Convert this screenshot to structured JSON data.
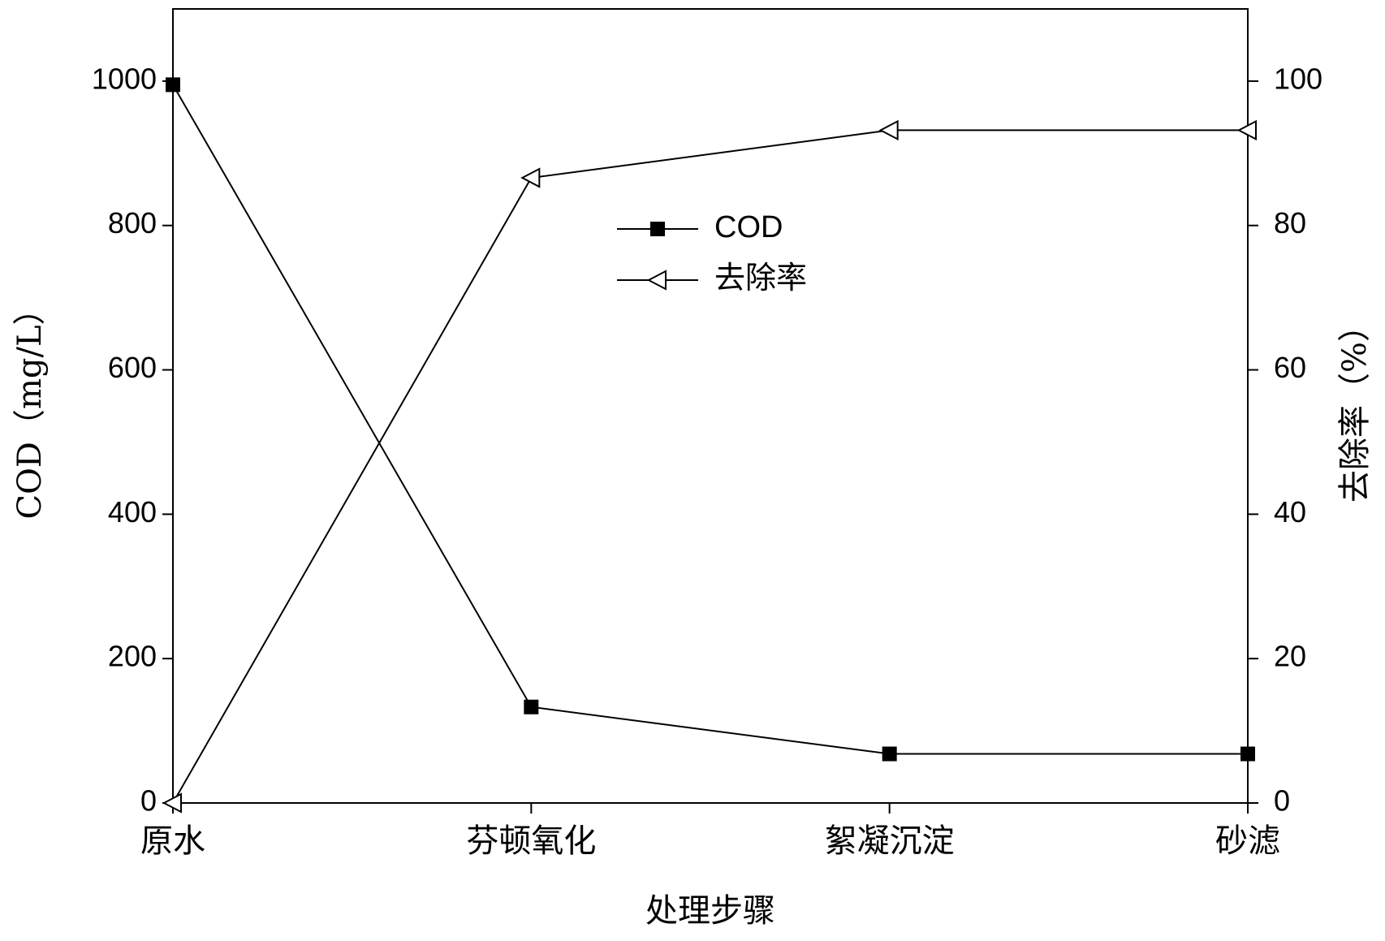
{
  "chart_data": {
    "type": "line",
    "x_label": "处理步骤",
    "y_label": "COD（mg/L）",
    "y2_label": "去除率（%）",
    "categories": [
      "原水",
      "芬顿氧化",
      "絮凝沉淀",
      "砂滤"
    ],
    "series": [
      {
        "name": "COD",
        "color": "#000000",
        "marker": "square",
        "values": [
          995,
          133,
          68,
          68
        ]
      },
      {
        "name": "去除率",
        "color": "#000000",
        "marker": "triangle-left",
        "axis": "y2",
        "values": [
          0,
          86.6,
          93.2,
          93.2
        ]
      }
    ],
    "ylim": [
      0,
      1100
    ],
    "yticks": [
      0,
      200,
      400,
      600,
      800,
      1000
    ],
    "y2lim": [
      0,
      110
    ],
    "y2ticks": [
      0,
      20,
      40,
      60,
      80,
      100
    ]
  }
}
